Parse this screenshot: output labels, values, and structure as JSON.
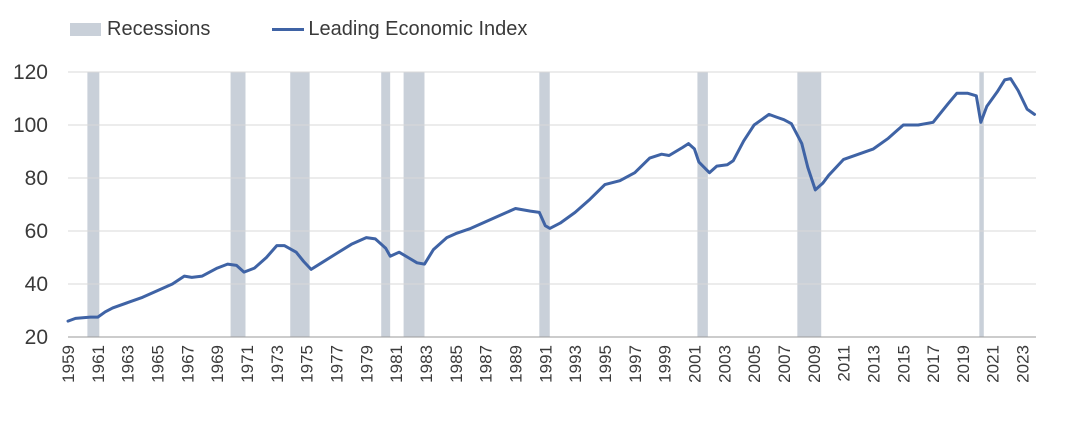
{
  "chart_data": {
    "type": "line",
    "title": "",
    "xlabel": "",
    "ylabel": "",
    "xlim": [
      1959,
      2023.9
    ],
    "ylim": [
      20,
      120
    ],
    "grid": true,
    "y_ticks": [
      20,
      40,
      60,
      80,
      100,
      120
    ],
    "x_ticks": [
      "1959",
      "1961",
      "1963",
      "1965",
      "1967",
      "1969",
      "1971",
      "1973",
      "1975",
      "1977",
      "1979",
      "1981",
      "1983",
      "1985",
      "1987",
      "1989",
      "1991",
      "1993",
      "1995",
      "1997",
      "1999",
      "2001",
      "2003",
      "2005",
      "2007",
      "2009",
      "2011",
      "2013",
      "2015",
      "2017",
      "2019",
      "2021",
      "2023"
    ],
    "legend": {
      "placement": "top-left",
      "entries": [
        {
          "label": "Recessions",
          "kind": "band",
          "color": "#c9d0d9"
        },
        {
          "label": "Leading Economic Index",
          "kind": "line",
          "color": "#3f63a5"
        }
      ]
    },
    "recessions": [
      [
        1960.3,
        1961.1
      ],
      [
        1969.9,
        1970.9
      ],
      [
        1973.9,
        1975.2
      ],
      [
        1980.0,
        1980.6
      ],
      [
        1981.5,
        1982.9
      ],
      [
        1990.6,
        1991.3
      ],
      [
        2001.2,
        2001.9
      ],
      [
        2007.9,
        2009.5
      ],
      [
        2020.1,
        2020.4
      ]
    ],
    "series": [
      {
        "name": "Leading Economic Index",
        "color": "#3f63a5",
        "points": [
          [
            1959.0,
            26
          ],
          [
            1959.5,
            27
          ],
          [
            1960.0,
            27.3
          ],
          [
            1960.5,
            27.5
          ],
          [
            1961.0,
            27.5
          ],
          [
            1961.5,
            29.5
          ],
          [
            1962.0,
            31
          ],
          [
            1963.0,
            33
          ],
          [
            1964.0,
            35
          ],
          [
            1965.0,
            37.5
          ],
          [
            1966.0,
            40
          ],
          [
            1966.8,
            43
          ],
          [
            1967.3,
            42.5
          ],
          [
            1968.0,
            43
          ],
          [
            1969.0,
            46
          ],
          [
            1969.7,
            47.5
          ],
          [
            1970.3,
            47
          ],
          [
            1970.8,
            44.5
          ],
          [
            1971.5,
            46
          ],
          [
            1972.3,
            50
          ],
          [
            1973.0,
            54.5
          ],
          [
            1973.5,
            54.5
          ],
          [
            1974.3,
            52
          ],
          [
            1974.8,
            48.5
          ],
          [
            1975.3,
            45.5
          ],
          [
            1976.0,
            48
          ],
          [
            1977.0,
            51.5
          ],
          [
            1978.0,
            55
          ],
          [
            1979.0,
            57.5
          ],
          [
            1979.6,
            57
          ],
          [
            1980.3,
            53.5
          ],
          [
            1980.6,
            50.5
          ],
          [
            1981.2,
            52
          ],
          [
            1981.8,
            50
          ],
          [
            1982.4,
            48
          ],
          [
            1982.9,
            47.5
          ],
          [
            1983.5,
            53
          ],
          [
            1984.4,
            57.5
          ],
          [
            1985.0,
            59
          ],
          [
            1986.0,
            61
          ],
          [
            1987.0,
            63.5
          ],
          [
            1988.0,
            66
          ],
          [
            1989.0,
            68.5
          ],
          [
            1990.0,
            67.5
          ],
          [
            1990.6,
            67
          ],
          [
            1991.0,
            62
          ],
          [
            1991.3,
            61
          ],
          [
            1992.0,
            63
          ],
          [
            1993.0,
            67
          ],
          [
            1994.0,
            72
          ],
          [
            1995.0,
            77.5
          ],
          [
            1996.0,
            79
          ],
          [
            1997.0,
            82
          ],
          [
            1998.0,
            87.5
          ],
          [
            1998.8,
            89
          ],
          [
            1999.3,
            88.5
          ],
          [
            2000.2,
            91.5
          ],
          [
            2000.6,
            93
          ],
          [
            2001.0,
            91
          ],
          [
            2001.3,
            86
          ],
          [
            2002.0,
            82
          ],
          [
            2002.5,
            84.5
          ],
          [
            2003.2,
            85
          ],
          [
            2003.6,
            86.5
          ],
          [
            2004.3,
            94
          ],
          [
            2005.0,
            100
          ],
          [
            2006.0,
            104
          ],
          [
            2006.5,
            103
          ],
          [
            2007.0,
            102
          ],
          [
            2007.5,
            100.5
          ],
          [
            2008.2,
            93
          ],
          [
            2008.6,
            84
          ],
          [
            2009.1,
            75.5
          ],
          [
            2009.6,
            78
          ],
          [
            2010.0,
            81
          ],
          [
            2011.0,
            87
          ],
          [
            2012.0,
            89
          ],
          [
            2013.0,
            91
          ],
          [
            2014.0,
            95
          ],
          [
            2014.6,
            98
          ],
          [
            2015.0,
            100
          ],
          [
            2016.0,
            100
          ],
          [
            2017.0,
            101
          ],
          [
            2018.0,
            108
          ],
          [
            2018.6,
            112
          ],
          [
            2019.3,
            112
          ],
          [
            2019.9,
            111
          ],
          [
            2020.2,
            101
          ],
          [
            2020.6,
            107
          ],
          [
            2021.3,
            112.5
          ],
          [
            2021.8,
            117
          ],
          [
            2022.2,
            117.5
          ],
          [
            2022.7,
            113
          ],
          [
            2023.3,
            106
          ],
          [
            2023.8,
            104
          ]
        ]
      }
    ]
  }
}
